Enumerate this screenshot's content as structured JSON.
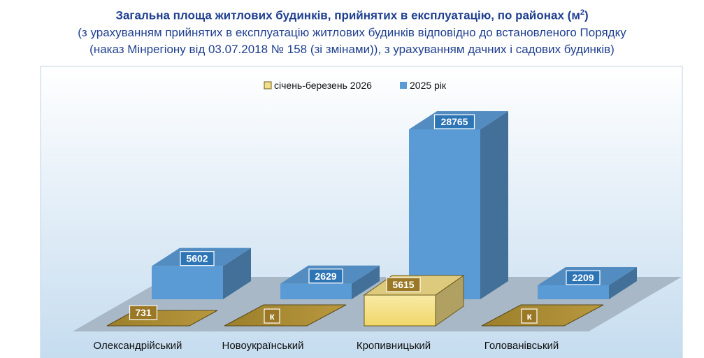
{
  "title": {
    "main": "Загальна площа житлових будинків, прийнятих в експлуатацію, по районах (м",
    "main_sup": "2",
    "main_end": ")",
    "line2": "(з урахуванням прийнятих в експлуатацію житлових будинків відповідно до встановленого Порядку",
    "line3": "(наказ Мінрегіону від 03.07.2018 № 158 (зі змінами)), з урахуванням дачних і садових будинків)"
  },
  "chart_data": {
    "type": "bar",
    "style": "3d-clustered",
    "categories": [
      "Олександрійський",
      "Новоукраїнський",
      "Кропивницький",
      "Голованівський"
    ],
    "series": [
      {
        "name": "січень-березень 2026",
        "values": [
          731,
          null,
          5615,
          null
        ],
        "labels": [
          "731",
          "к",
          "5615",
          "к"
        ],
        "color": "#f5e08a"
      },
      {
        "name": "2025 рік",
        "values": [
          5602,
          2629,
          28765,
          2209
        ],
        "labels": [
          "5602",
          "2629",
          "28765",
          "2209"
        ],
        "color": "#5b9bd5"
      }
    ],
    "legend_position": "top",
    "grid": false
  }
}
